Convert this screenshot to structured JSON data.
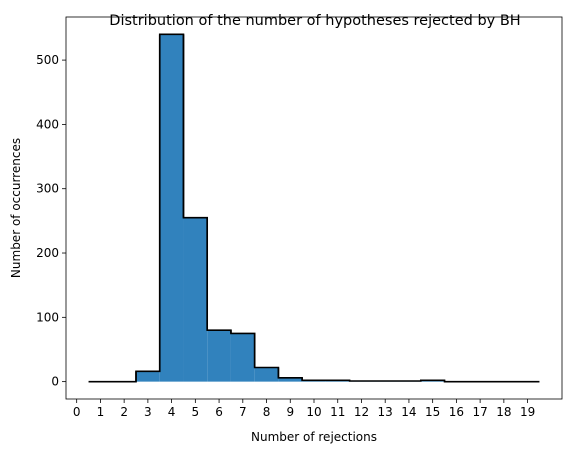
{
  "chart_data": {
    "type": "bar",
    "title": "Distribution of the number of hypotheses rejected by BH",
    "xlabel": "Number of rejections",
    "ylabel": "Number of occurrences",
    "x_ticks": [
      "0",
      "1",
      "2",
      "3",
      "4",
      "5",
      "6",
      "7",
      "8",
      "9",
      "10",
      "11",
      "12",
      "13",
      "14",
      "15",
      "16",
      "17",
      "18",
      "19"
    ],
    "y_ticks": [
      "0",
      "100",
      "200",
      "300",
      "400",
      "500"
    ],
    "xlim": [
      -0.45,
      20.45
    ],
    "ylim": [
      -27,
      567
    ],
    "bins": [
      1,
      2,
      3,
      4,
      5,
      6,
      7,
      8,
      9,
      10,
      11,
      12,
      13,
      14,
      15,
      16,
      17,
      18,
      19
    ],
    "values": [
      0,
      0,
      16,
      540,
      255,
      80,
      75,
      22,
      6,
      2,
      2,
      1,
      1,
      1,
      2,
      0,
      0,
      0,
      0
    ],
    "bar_color": "#3182bd",
    "edge_color": "#000000",
    "grid": false
  }
}
